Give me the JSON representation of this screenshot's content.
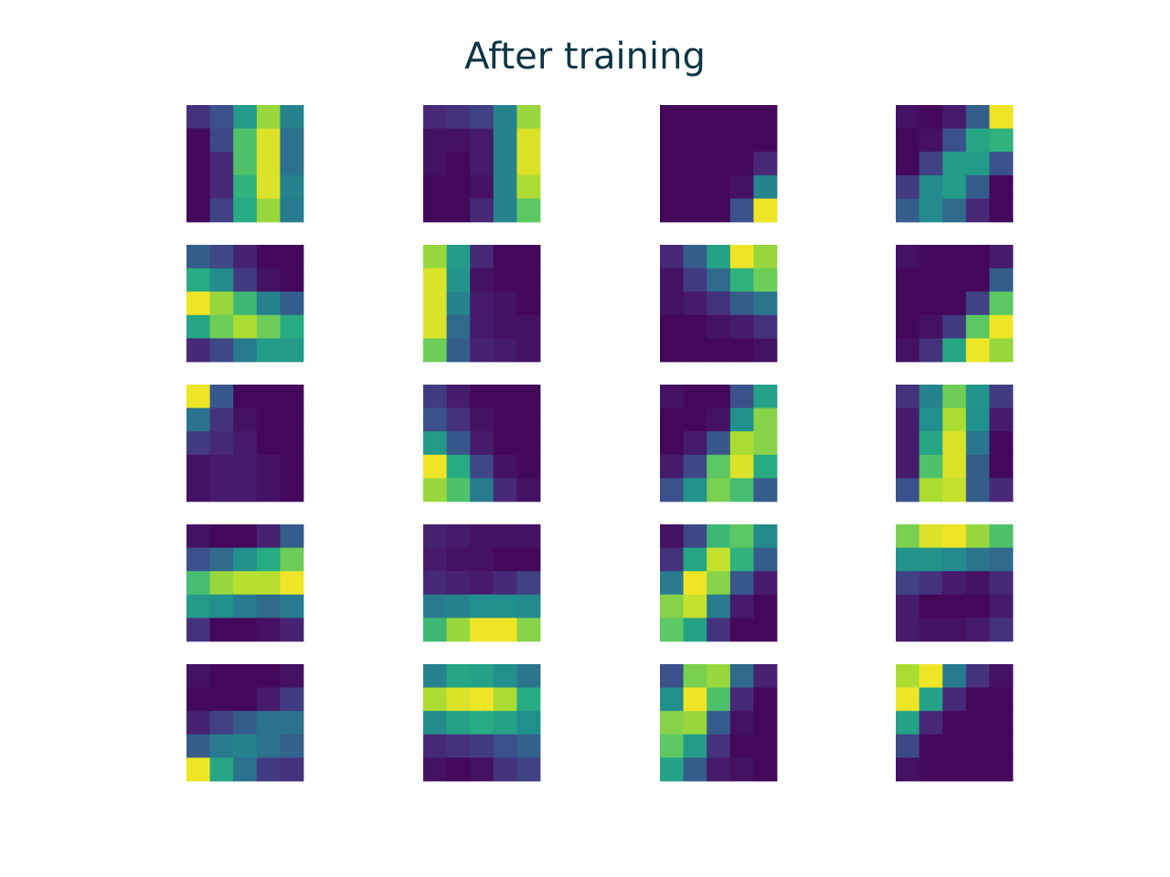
{
  "chart_data": {
    "type": "heatmap",
    "title": "After training",
    "rows": 5,
    "cols": 4,
    "colormap": "viridis",
    "value_range": [
      0,
      1
    ],
    "axes_visible": false,
    "filters": [
      [
        [
          0.15,
          0.25,
          0.55,
          0.85,
          0.45
        ],
        [
          0.02,
          0.22,
          0.72,
          0.95,
          0.38
        ],
        [
          0.02,
          0.12,
          0.72,
          0.95,
          0.38
        ],
        [
          0.02,
          0.12,
          0.65,
          0.95,
          0.45
        ],
        [
          0.02,
          0.2,
          0.62,
          0.85,
          0.42
        ]
      ],
      [
        [
          0.12,
          0.15,
          0.2,
          0.45,
          0.85
        ],
        [
          0.05,
          0.05,
          0.08,
          0.45,
          0.95
        ],
        [
          0.05,
          0.02,
          0.08,
          0.45,
          0.95
        ],
        [
          0.02,
          0.02,
          0.05,
          0.45,
          0.88
        ],
        [
          0.02,
          0.02,
          0.12,
          0.45,
          0.75
        ]
      ],
      [
        [
          0.02,
          0.02,
          0.02,
          0.02,
          0.02
        ],
        [
          0.02,
          0.02,
          0.02,
          0.02,
          0.02
        ],
        [
          0.02,
          0.02,
          0.02,
          0.02,
          0.12
        ],
        [
          0.02,
          0.02,
          0.02,
          0.05,
          0.45
        ],
        [
          0.02,
          0.02,
          0.02,
          0.25,
          0.98
        ]
      ],
      [
        [
          0.05,
          0.02,
          0.08,
          0.3,
          0.98
        ],
        [
          0.02,
          0.05,
          0.25,
          0.6,
          0.65
        ],
        [
          0.02,
          0.2,
          0.55,
          0.55,
          0.25
        ],
        [
          0.18,
          0.48,
          0.55,
          0.3,
          0.02
        ],
        [
          0.3,
          0.48,
          0.35,
          0.12,
          0.02
        ]
      ],
      [
        [
          0.3,
          0.22,
          0.1,
          0.02,
          0.02
        ],
        [
          0.62,
          0.48,
          0.18,
          0.05,
          0.02
        ],
        [
          0.98,
          0.85,
          0.68,
          0.45,
          0.3
        ],
        [
          0.6,
          0.78,
          0.88,
          0.78,
          0.62
        ],
        [
          0.12,
          0.22,
          0.42,
          0.55,
          0.55
        ]
      ],
      [
        [
          0.85,
          0.55,
          0.12,
          0.02,
          0.02
        ],
        [
          0.95,
          0.52,
          0.05,
          0.02,
          0.02
        ],
        [
          0.95,
          0.45,
          0.08,
          0.05,
          0.02
        ],
        [
          0.95,
          0.35,
          0.08,
          0.05,
          0.05
        ],
        [
          0.78,
          0.3,
          0.1,
          0.08,
          0.05
        ]
      ],
      [
        [
          0.12,
          0.3,
          0.58,
          0.98,
          0.85
        ],
        [
          0.05,
          0.18,
          0.35,
          0.65,
          0.78
        ],
        [
          0.05,
          0.08,
          0.15,
          0.3,
          0.4
        ],
        [
          0.02,
          0.02,
          0.05,
          0.08,
          0.15
        ],
        [
          0.02,
          0.02,
          0.02,
          0.02,
          0.05
        ]
      ],
      [
        [
          0.05,
          0.02,
          0.02,
          0.02,
          0.08
        ],
        [
          0.02,
          0.02,
          0.02,
          0.02,
          0.3
        ],
        [
          0.02,
          0.02,
          0.02,
          0.2,
          0.75
        ],
        [
          0.02,
          0.05,
          0.18,
          0.75,
          0.98
        ],
        [
          0.05,
          0.15,
          0.6,
          0.98,
          0.85
        ]
      ],
      [
        [
          0.98,
          0.28,
          0.02,
          0.02,
          0.02
        ],
        [
          0.38,
          0.15,
          0.05,
          0.02,
          0.02
        ],
        [
          0.18,
          0.12,
          0.08,
          0.02,
          0.02
        ],
        [
          0.05,
          0.08,
          0.08,
          0.05,
          0.02
        ],
        [
          0.05,
          0.08,
          0.08,
          0.05,
          0.02
        ]
      ],
      [
        [
          0.18,
          0.08,
          0.02,
          0.02,
          0.02
        ],
        [
          0.25,
          0.15,
          0.05,
          0.02,
          0.02
        ],
        [
          0.55,
          0.28,
          0.08,
          0.02,
          0.02
        ],
        [
          0.98,
          0.62,
          0.22,
          0.05,
          0.02
        ],
        [
          0.85,
          0.72,
          0.42,
          0.12,
          0.05
        ]
      ],
      [
        [
          0.05,
          0.02,
          0.02,
          0.25,
          0.58
        ],
        [
          0.02,
          0.02,
          0.05,
          0.5,
          0.82
        ],
        [
          0.02,
          0.08,
          0.28,
          0.88,
          0.82
        ],
        [
          0.08,
          0.22,
          0.75,
          0.95,
          0.62
        ],
        [
          0.25,
          0.52,
          0.8,
          0.7,
          0.3
        ]
      ],
      [
        [
          0.15,
          0.45,
          0.78,
          0.52,
          0.18
        ],
        [
          0.08,
          0.5,
          0.88,
          0.5,
          0.08
        ],
        [
          0.08,
          0.6,
          0.95,
          0.4,
          0.02
        ],
        [
          0.08,
          0.72,
          0.95,
          0.3,
          0.02
        ],
        [
          0.25,
          0.88,
          0.92,
          0.3,
          0.12
        ]
      ],
      [
        [
          0.05,
          0.02,
          0.02,
          0.1,
          0.3
        ],
        [
          0.25,
          0.35,
          0.5,
          0.62,
          0.78
        ],
        [
          0.7,
          0.85,
          0.9,
          0.9,
          0.98
        ],
        [
          0.55,
          0.5,
          0.42,
          0.35,
          0.42
        ],
        [
          0.15,
          0.02,
          0.02,
          0.05,
          0.1
        ]
      ],
      [
        [
          0.1,
          0.08,
          0.05,
          0.05,
          0.05
        ],
        [
          0.08,
          0.05,
          0.05,
          0.02,
          0.02
        ],
        [
          0.12,
          0.1,
          0.08,
          0.12,
          0.2
        ],
        [
          0.42,
          0.45,
          0.5,
          0.5,
          0.48
        ],
        [
          0.68,
          0.85,
          0.98,
          0.98,
          0.82
        ]
      ],
      [
        [
          0.05,
          0.22,
          0.68,
          0.75,
          0.48
        ],
        [
          0.15,
          0.6,
          0.92,
          0.65,
          0.3
        ],
        [
          0.42,
          0.98,
          0.82,
          0.28,
          0.08
        ],
        [
          0.82,
          0.92,
          0.42,
          0.08,
          0.02
        ],
        [
          0.75,
          0.58,
          0.15,
          0.02,
          0.02
        ]
      ],
      [
        [
          0.8,
          0.95,
          0.98,
          0.85,
          0.72
        ],
        [
          0.52,
          0.52,
          0.48,
          0.4,
          0.35
        ],
        [
          0.2,
          0.15,
          0.08,
          0.05,
          0.12
        ],
        [
          0.08,
          0.02,
          0.02,
          0.02,
          0.08
        ],
        [
          0.08,
          0.05,
          0.05,
          0.08,
          0.15
        ]
      ],
      [
        [
          0.05,
          0.02,
          0.02,
          0.02,
          0.05
        ],
        [
          0.02,
          0.02,
          0.02,
          0.08,
          0.18
        ],
        [
          0.1,
          0.2,
          0.3,
          0.38,
          0.38
        ],
        [
          0.3,
          0.42,
          0.45,
          0.38,
          0.32
        ],
        [
          0.98,
          0.6,
          0.38,
          0.18,
          0.15
        ]
      ],
      [
        [
          0.45,
          0.6,
          0.58,
          0.5,
          0.4
        ],
        [
          0.88,
          0.95,
          0.98,
          0.88,
          0.62
        ],
        [
          0.48,
          0.58,
          0.62,
          0.58,
          0.5
        ],
        [
          0.12,
          0.15,
          0.18,
          0.25,
          0.32
        ],
        [
          0.05,
          0.02,
          0.05,
          0.15,
          0.2
        ]
      ],
      [
        [
          0.25,
          0.8,
          0.85,
          0.35,
          0.1
        ],
        [
          0.5,
          0.98,
          0.72,
          0.12,
          0.02
        ],
        [
          0.82,
          0.85,
          0.3,
          0.05,
          0.02
        ],
        [
          0.75,
          0.55,
          0.15,
          0.02,
          0.02
        ],
        [
          0.58,
          0.3,
          0.08,
          0.05,
          0.02
        ]
      ],
      [
        [
          0.88,
          0.98,
          0.42,
          0.15,
          0.05
        ],
        [
          0.98,
          0.58,
          0.12,
          0.02,
          0.02
        ],
        [
          0.58,
          0.12,
          0.02,
          0.02,
          0.02
        ],
        [
          0.22,
          0.02,
          0.02,
          0.02,
          0.02
        ],
        [
          0.05,
          0.02,
          0.02,
          0.02,
          0.02
        ]
      ]
    ]
  }
}
